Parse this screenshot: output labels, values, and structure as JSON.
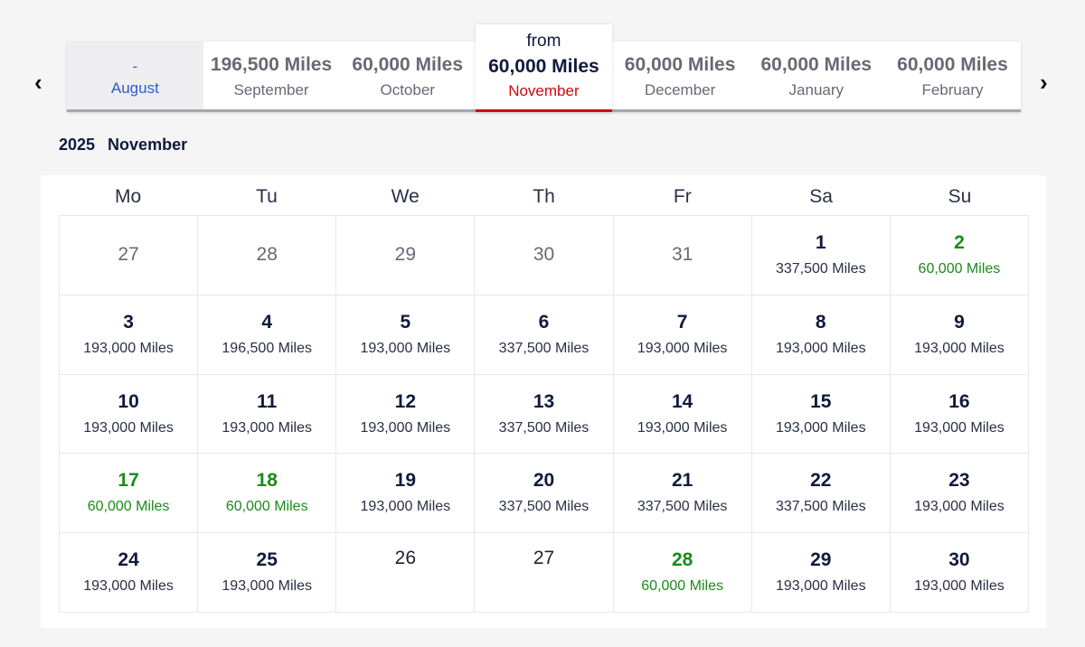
{
  "nav": {
    "prev_icon": "chevron-left-icon",
    "next_icon": "chevron-right-icon"
  },
  "months": [
    {
      "miles": "-",
      "month": "August",
      "state": "unavailable"
    },
    {
      "miles": "196,500 Miles",
      "month": "September"
    },
    {
      "miles": "60,000 Miles",
      "month": "October"
    },
    {
      "from": "from",
      "miles": "60,000 Miles",
      "month": "November",
      "state": "selected"
    },
    {
      "miles": "60,000 Miles",
      "month": "December"
    },
    {
      "miles": "60,000 Miles",
      "month": "January"
    },
    {
      "miles": "60,000 Miles",
      "month": "February"
    }
  ],
  "calendar": {
    "year": "2025",
    "month": "November",
    "weekdays": [
      "Mo",
      "Tu",
      "We",
      "Th",
      "Fr",
      "Sa",
      "Su"
    ],
    "colors": {
      "lowest": "#1b8a1b",
      "selected": "#d10a0a",
      "link": "#2b5bd6"
    },
    "weeks": [
      [
        {
          "day": "27",
          "type": "other"
        },
        {
          "day": "28",
          "type": "other"
        },
        {
          "day": "29",
          "type": "other"
        },
        {
          "day": "30",
          "type": "other"
        },
        {
          "day": "31",
          "type": "other"
        },
        {
          "day": "1",
          "miles": "337,500 Miles"
        },
        {
          "day": "2",
          "miles": "60,000 Miles",
          "type": "green"
        }
      ],
      [
        {
          "day": "3",
          "miles": "193,000 Miles"
        },
        {
          "day": "4",
          "miles": "196,500 Miles"
        },
        {
          "day": "5",
          "miles": "193,000 Miles"
        },
        {
          "day": "6",
          "miles": "337,500 Miles"
        },
        {
          "day": "7",
          "miles": "193,000 Miles"
        },
        {
          "day": "8",
          "miles": "193,000 Miles"
        },
        {
          "day": "9",
          "miles": "193,000 Miles"
        }
      ],
      [
        {
          "day": "10",
          "miles": "193,000 Miles"
        },
        {
          "day": "11",
          "miles": "193,000 Miles"
        },
        {
          "day": "12",
          "miles": "193,000 Miles"
        },
        {
          "day": "13",
          "miles": "337,500 Miles"
        },
        {
          "day": "14",
          "miles": "193,000 Miles"
        },
        {
          "day": "15",
          "miles": "193,000 Miles"
        },
        {
          "day": "16",
          "miles": "193,000 Miles"
        }
      ],
      [
        {
          "day": "17",
          "miles": "60,000 Miles",
          "type": "green"
        },
        {
          "day": "18",
          "miles": "60,000 Miles",
          "type": "green"
        },
        {
          "day": "19",
          "miles": "193,000 Miles"
        },
        {
          "day": "20",
          "miles": "337,500 Miles"
        },
        {
          "day": "21",
          "miles": "337,500 Miles"
        },
        {
          "day": "22",
          "miles": "337,500 Miles"
        },
        {
          "day": "23",
          "miles": "193,000 Miles"
        }
      ],
      [
        {
          "day": "24",
          "miles": "193,000 Miles"
        },
        {
          "day": "25",
          "miles": "193,000 Miles"
        },
        {
          "day": "26",
          "type": "none"
        },
        {
          "day": "27",
          "type": "none"
        },
        {
          "day": "28",
          "miles": "60,000 Miles",
          "type": "green"
        },
        {
          "day": "29",
          "miles": "193,000 Miles"
        },
        {
          "day": "30",
          "miles": "193,000 Miles"
        }
      ]
    ]
  }
}
